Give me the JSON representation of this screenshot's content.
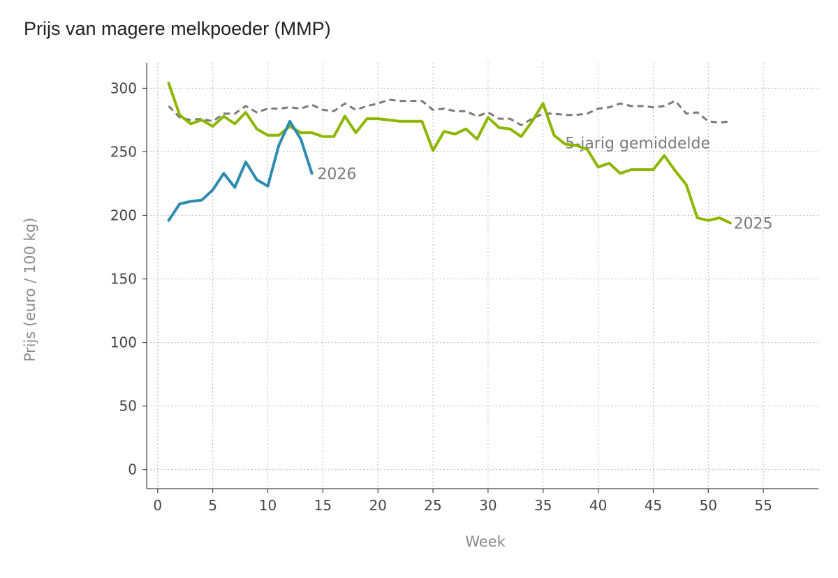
{
  "chart_data": {
    "type": "line",
    "title": "Prijs van magere melkpoeder (MMP)",
    "xlabel": "Week",
    "ylabel": "Prijs (euro / 100 kg)",
    "xlim": [
      -1,
      60
    ],
    "ylim": [
      -15,
      320
    ],
    "xticks": [
      0,
      5,
      10,
      15,
      20,
      25,
      30,
      35,
      40,
      45,
      50,
      55
    ],
    "yticks": [
      0,
      50,
      100,
      150,
      200,
      250,
      300
    ],
    "grid": true,
    "series": [
      {
        "name": "5-jarig gemiddelde",
        "color": "#7a7a7a",
        "style": "dashed",
        "label_at": [
          37,
          257
        ],
        "x": [
          1,
          2,
          3,
          4,
          5,
          6,
          7,
          8,
          9,
          10,
          11,
          12,
          13,
          14,
          15,
          16,
          17,
          18,
          19,
          20,
          21,
          22,
          23,
          24,
          25,
          26,
          27,
          28,
          29,
          30,
          31,
          32,
          33,
          34,
          35,
          36,
          37,
          38,
          39,
          40,
          41,
          42,
          43,
          44,
          45,
          46,
          47,
          48,
          49,
          50,
          51,
          52
        ],
        "values": [
          286,
          277,
          275,
          276,
          274,
          280,
          280,
          286,
          281,
          284,
          284,
          285,
          284,
          287,
          283,
          282,
          288,
          283,
          286,
          288,
          291,
          290,
          290,
          290,
          283,
          284,
          282,
          282,
          278,
          281,
          276,
          276,
          271,
          276,
          280,
          280,
          279,
          279,
          280,
          284,
          285,
          288,
          286,
          286,
          285,
          286,
          290,
          280,
          281,
          274,
          273,
          274
        ]
      },
      {
        "name": "2025",
        "color": "#8db600",
        "style": "solid",
        "label_at": [
          52.3,
          194
        ],
        "x": [
          1,
          2,
          3,
          4,
          5,
          6,
          7,
          8,
          9,
          10,
          11,
          12,
          13,
          14,
          15,
          16,
          17,
          18,
          19,
          20,
          21,
          22,
          23,
          24,
          25,
          26,
          27,
          28,
          29,
          30,
          31,
          32,
          33,
          34,
          35,
          36,
          37,
          38,
          39,
          40,
          41,
          42,
          43,
          44,
          45,
          46,
          47,
          48,
          49,
          50,
          51,
          52
        ],
        "values": [
          304,
          279,
          272,
          275,
          270,
          278,
          272,
          281,
          268,
          263,
          263,
          270,
          265,
          265,
          262,
          262,
          278,
          265,
          276,
          276,
          275,
          274,
          274,
          274,
          251,
          266,
          264,
          268,
          260,
          277,
          269,
          268,
          262,
          274,
          288,
          263,
          256,
          255,
          252,
          238,
          241,
          233,
          236,
          236,
          236,
          247,
          235,
          224,
          198,
          196,
          198,
          194
        ]
      },
      {
        "name": "2026",
        "color": "#2e8bb0",
        "style": "solid",
        "label_at": [
          14.5,
          233
        ],
        "x": [
          1,
          2,
          3,
          4,
          5,
          6,
          7,
          8,
          9,
          10,
          11,
          12,
          13,
          14
        ],
        "values": [
          196,
          209,
          211,
          212,
          220,
          233,
          222,
          242,
          228,
          223,
          255,
          274,
          260,
          233
        ]
      }
    ]
  }
}
